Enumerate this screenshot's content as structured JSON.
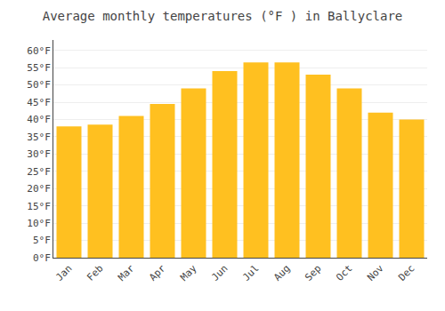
{
  "chart_data": {
    "type": "bar",
    "title": "Average monthly temperatures (°F ) in Ballyclare",
    "categories": [
      "Jan",
      "Feb",
      "Mar",
      "Apr",
      "May",
      "Jun",
      "Jul",
      "Aug",
      "Sep",
      "Oct",
      "Nov",
      "Dec"
    ],
    "values": [
      38,
      38.5,
      41,
      44.5,
      49,
      54,
      56.5,
      56.5,
      53,
      49,
      42,
      40
    ],
    "color": "#FFC020",
    "ylim": [
      0,
      63
    ],
    "yticks": [
      {
        "value": 0,
        "label": "0°F"
      },
      {
        "value": 5,
        "label": "5°F"
      },
      {
        "value": 10,
        "label": "10°F"
      },
      {
        "value": 15,
        "label": "15°F"
      },
      {
        "value": 20,
        "label": "20°F"
      },
      {
        "value": 25,
        "label": "25°F"
      },
      {
        "value": 30,
        "label": "30°F"
      },
      {
        "value": 35,
        "label": "35°F"
      },
      {
        "value": 40,
        "label": "40°F"
      },
      {
        "value": 45,
        "label": "45°F"
      },
      {
        "value": 50,
        "label": "50°F"
      },
      {
        "value": 55,
        "label": "55°F"
      },
      {
        "value": 60,
        "label": "60°F"
      }
    ],
    "grid": true
  }
}
